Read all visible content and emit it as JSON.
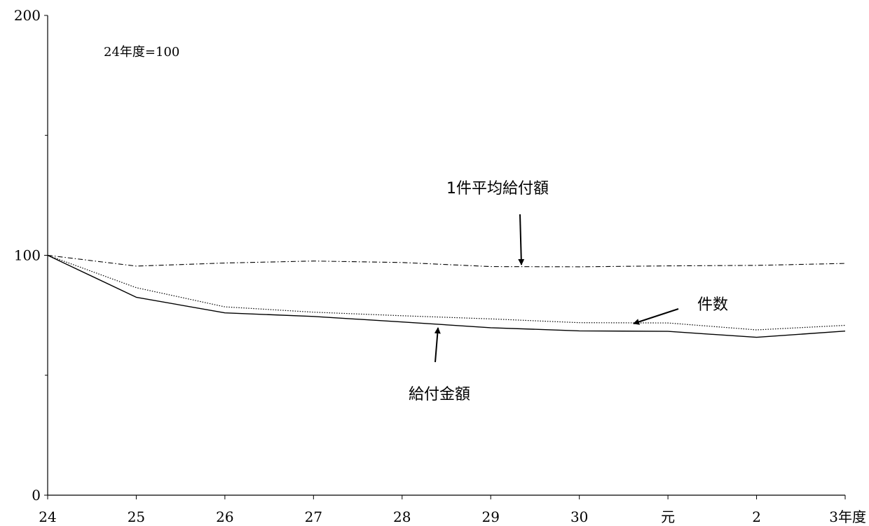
{
  "chart_data": {
    "type": "line",
    "title": "",
    "note": "24年度=100",
    "xlabel": "",
    "ylabel": "",
    "categories": [
      "24",
      "25",
      "26",
      "27",
      "28",
      "29",
      "30",
      "元",
      "2",
      "3年度"
    ],
    "ylim": [
      0,
      200
    ],
    "y_ticks": [
      "0",
      "100",
      "200"
    ],
    "y_minor_ticks": [
      50,
      150
    ],
    "grid": false,
    "series": [
      {
        "name": "1件平均給付額",
        "style": "dash-dot",
        "values": [
          100,
          95.5,
          96.8,
          97.6,
          97.0,
          95.3,
          95.2,
          95.6,
          95.8,
          96.6
        ]
      },
      {
        "name": "件数",
        "style": "dotted",
        "values": [
          100,
          86.5,
          78.5,
          76.3,
          74.8,
          73.5,
          71.9,
          71.8,
          68.9,
          70.8
        ]
      },
      {
        "name": "給付金額",
        "style": "solid",
        "values": [
          100,
          82.5,
          76.0,
          74.5,
          72.2,
          69.8,
          68.5,
          68.3,
          65.8,
          68.4
        ]
      }
    ],
    "annotations": [
      {
        "text": "1件平均給付額",
        "series": "1件平均給付額"
      },
      {
        "text": "件数",
        "series": "件数"
      },
      {
        "text": "給付金額",
        "series": "給付金額"
      }
    ]
  }
}
